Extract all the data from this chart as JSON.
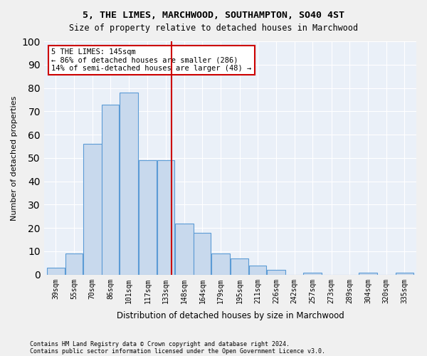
{
  "title1": "5, THE LIMES, MARCHWOOD, SOUTHAMPTON, SO40 4ST",
  "title2": "Size of property relative to detached houses in Marchwood",
  "xlabel": "Distribution of detached houses by size in Marchwood",
  "ylabel": "Number of detached properties",
  "footnote1": "Contains HM Land Registry data © Crown copyright and database right 2024.",
  "footnote2": "Contains public sector information licensed under the Open Government Licence v3.0.",
  "annotation_line1": "5 THE LIMES: 145sqm",
  "annotation_line2": "← 86% of detached houses are smaller (286)",
  "annotation_line3": "14% of semi-detached houses are larger (48) →",
  "subject_value": 145,
  "bar_edges": [
    39,
    55,
    70,
    86,
    101,
    117,
    133,
    148,
    164,
    179,
    195,
    211,
    226,
    242,
    257,
    273,
    289,
    304,
    320,
    335,
    351
  ],
  "bar_heights": [
    3,
    9,
    56,
    73,
    78,
    49,
    49,
    22,
    18,
    9,
    7,
    4,
    2,
    0,
    1,
    0,
    0,
    1,
    0,
    1
  ],
  "bar_color": "#c8d9ed",
  "bar_edge_color": "#5b9bd5",
  "vline_color": "#cc0000",
  "vline_x": 145,
  "bg_color": "#eaf0f8",
  "annotation_box_color": "#ffffff",
  "annotation_box_edge": "#cc0000",
  "ylim": [
    0,
    100
  ],
  "yticks": [
    0,
    10,
    20,
    30,
    40,
    50,
    60,
    70,
    80,
    90,
    100
  ]
}
